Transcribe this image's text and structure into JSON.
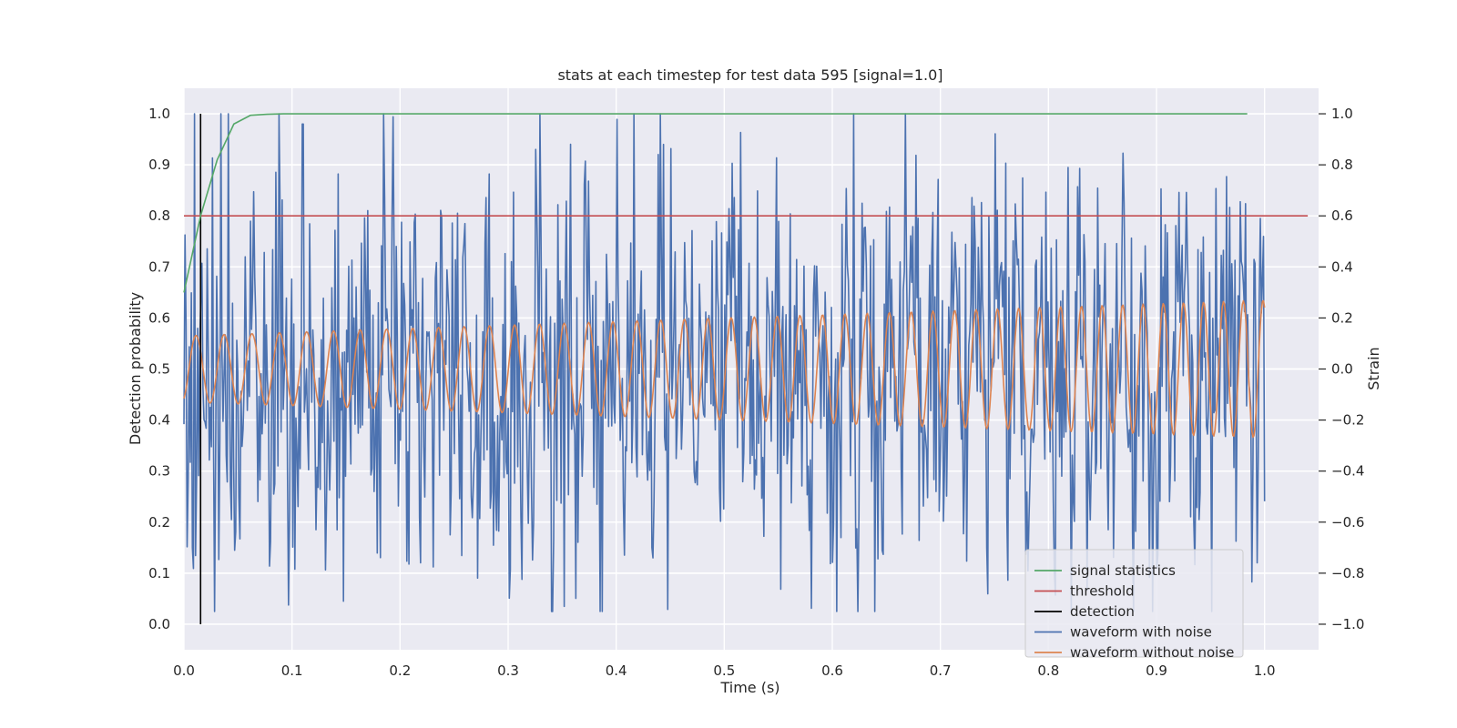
{
  "chart_data": {
    "type": "line",
    "title": "stats at each timestep for test data 595 [signal=1.0]",
    "xlabel": "Time (s)",
    "ylabel": "Detection probability",
    "y2label": "Strain",
    "xlim": [
      0.0,
      1.05
    ],
    "ylim": [
      -0.05,
      1.05
    ],
    "y2lim": [
      -1.1,
      1.1
    ],
    "xticks": [
      "0.0",
      "0.1",
      "0.2",
      "0.3",
      "0.4",
      "0.5",
      "0.6",
      "0.7",
      "0.8",
      "0.9",
      "1.0"
    ],
    "yticks": [
      "0.0",
      "0.1",
      "0.2",
      "0.3",
      "0.4",
      "0.5",
      "0.6",
      "0.7",
      "0.8",
      "0.9",
      "1.0"
    ],
    "y2ticks": [
      "−1.0",
      "−0.8",
      "−0.6",
      "−0.4",
      "−0.2",
      "0.0",
      "0.2",
      "0.4",
      "0.6",
      "0.8",
      "1.0"
    ],
    "grid": true,
    "legend_position": "lower-right",
    "series": [
      {
        "name": "signal statistics",
        "axis": "left",
        "color": "#55a868",
        "x": [
          0.0,
          0.0154,
          0.0308,
          0.0462,
          0.0615,
          0.0769,
          0.0923,
          0.1077,
          0.2,
          0.4,
          0.6,
          0.8,
          0.984
        ],
        "y": [
          0.65,
          0.8,
          0.91,
          0.98,
          0.997,
          0.999,
          1.0,
          1.0,
          1.0,
          1.0,
          1.0,
          1.0,
          1.0
        ]
      },
      {
        "name": "threshold",
        "axis": "left",
        "color": "#c44e52",
        "x": [
          0.0,
          1.04
        ],
        "y": [
          0.8,
          0.8
        ]
      },
      {
        "name": "detection",
        "axis": "left",
        "color": "#000000",
        "x": [
          0.0154,
          0.0154
        ],
        "y": [
          0.0,
          1.0
        ]
      },
      {
        "name": "waveform with noise",
        "axis": "right",
        "color": "#4c72b0",
        "x_range": [
          0.0,
          1.0
        ],
        "n_points": 1024,
        "y_range": [
          -0.95,
          1.0
        ],
        "peaks": [
          {
            "x": 0.11,
            "y": 0.96
          },
          {
            "x": 0.62,
            "y": 1.0
          },
          {
            "x": 0.352,
            "y": -0.93
          },
          {
            "x": 0.387,
            "y": -0.95
          }
        ]
      },
      {
        "name": "waveform without noise",
        "axis": "right",
        "color": "#dd8452",
        "x_range": [
          0.0,
          1.0
        ],
        "n_points": 1024,
        "amplitude_start": 0.13,
        "amplitude_end": 0.27,
        "freq_start_hz": 38,
        "freq_end_hz": 55
      }
    ]
  }
}
